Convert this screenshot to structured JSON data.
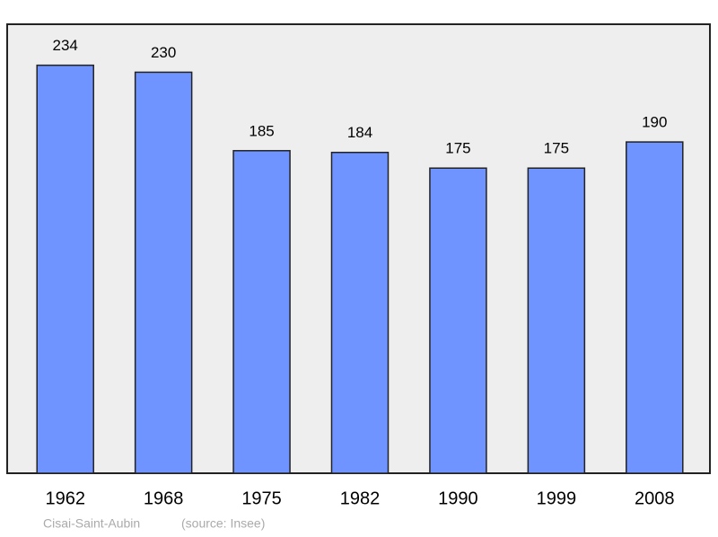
{
  "chart_data": {
    "type": "bar",
    "categories": [
      "1962",
      "1968",
      "1975",
      "1982",
      "1990",
      "1999",
      "2008"
    ],
    "values": [
      234,
      230,
      185,
      184,
      175,
      175,
      190
    ],
    "color": "#7094ff",
    "ylim": [
      0,
      257
    ],
    "caption": "Cisai-Saint-Aubin",
    "source": "(source: Insee)"
  }
}
